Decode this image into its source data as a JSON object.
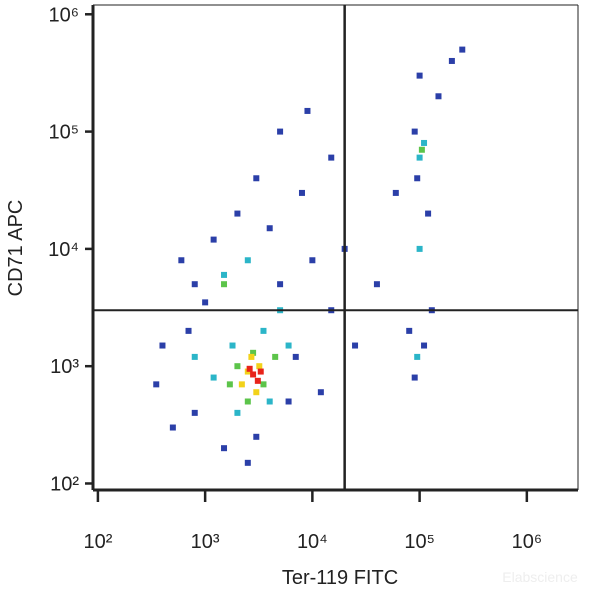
{
  "chart_data": {
    "type": "scatter",
    "x_label": "Ter-119 FITC",
    "y_label": "CD71 APC",
    "watermark": "Elabscience",
    "xscale": "log",
    "yscale": "log",
    "xlim": [
      90,
      3000000
    ],
    "ylim": [
      88,
      1200000
    ],
    "xticks": [
      {
        "value": 100,
        "label": "10²"
      },
      {
        "value": 1000,
        "label": "10³"
      },
      {
        "value": 10000,
        "label": "10⁴"
      },
      {
        "value": 100000,
        "label": "10⁵"
      },
      {
        "value": 1000000,
        "label": "10⁶"
      }
    ],
    "yticks": [
      {
        "value": 100,
        "label": "10²"
      },
      {
        "value": 1000,
        "label": "10³"
      },
      {
        "value": 10000,
        "label": "10⁴"
      },
      {
        "value": 100000,
        "label": "10⁵"
      },
      {
        "value": 1000000,
        "label": "10⁶"
      }
    ],
    "gates": {
      "x": 20000,
      "y": 3000,
      "color": "#222222"
    },
    "series": [
      {
        "color": "#2b3fa8",
        "x": [
          500,
          800,
          1200,
          600,
          2000,
          4000,
          8000,
          15000,
          3000,
          700,
          400,
          10000,
          15000,
          6000,
          3000,
          1500,
          800,
          25000,
          40000,
          80000,
          90000,
          110000,
          120000,
          150000,
          200000,
          90000,
          60000,
          9000,
          5000,
          20000,
          1000,
          12000,
          2500,
          7000,
          350,
          100000,
          250000,
          130000,
          95000,
          5000
        ],
        "values": [
          300,
          5000,
          12000,
          8000,
          20000,
          15000,
          30000,
          60000,
          40000,
          2000,
          1500,
          8000,
          3000,
          500,
          250,
          200,
          400,
          1500,
          5000,
          2000,
          800,
          1500,
          20000,
          200000,
          400000,
          100000,
          30000,
          150000,
          100000,
          10000,
          3500,
          600,
          150,
          1200,
          700,
          300000,
          500000,
          3000,
          40000,
          5000
        ]
      },
      {
        "color": "#2bb5c8",
        "x": [
          1500,
          2500,
          1800,
          3500,
          5000,
          1200,
          4000,
          100000,
          110000,
          100000,
          95000,
          2000,
          800,
          6000
        ],
        "values": [
          6000,
          8000,
          1500,
          2000,
          3000,
          800,
          500,
          60000,
          80000,
          10000,
          1200,
          400,
          1200,
          1500
        ]
      },
      {
        "color": "#5cc44a",
        "x": [
          2000,
          2800,
          3500,
          1700,
          2500,
          4500,
          105000,
          1500
        ],
        "values": [
          1000,
          1300,
          700,
          700,
          500,
          1200,
          70000,
          5000
        ]
      },
      {
        "color": "#f2d21a",
        "x": [
          2500,
          3200,
          2200,
          3000,
          2700
        ],
        "values": [
          900,
          1000,
          700,
          600,
          1200
        ]
      },
      {
        "color": "#e8231a",
        "x": [
          2800,
          3100,
          2600,
          3300
        ],
        "values": [
          850,
          750,
          950,
          900
        ]
      }
    ]
  }
}
